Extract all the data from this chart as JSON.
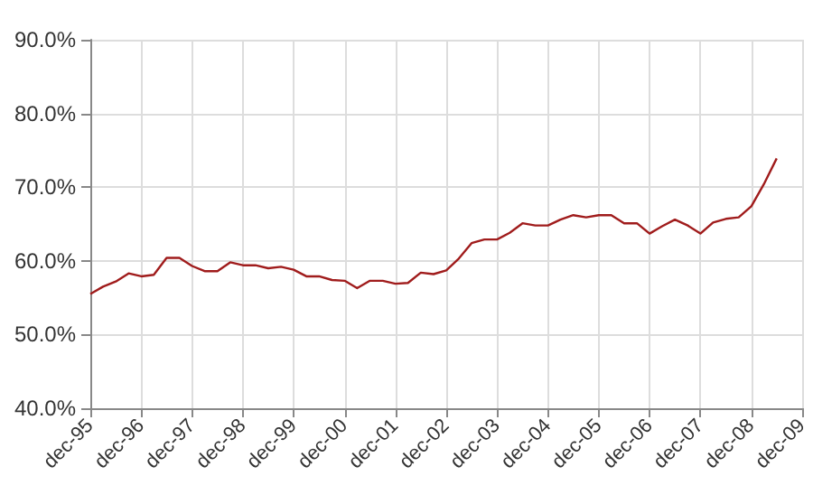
{
  "chart_data": {
    "type": "line",
    "x": [
      "1995-12",
      "1996-03",
      "1996-06",
      "1996-09",
      "1996-12",
      "1997-03",
      "1997-06",
      "1997-09",
      "1997-12",
      "1998-03",
      "1998-06",
      "1998-09",
      "1998-12",
      "1999-03",
      "1999-06",
      "1999-09",
      "1999-12",
      "2000-03",
      "2000-06",
      "2000-09",
      "2000-12",
      "2001-03",
      "2001-06",
      "2001-09",
      "2001-12",
      "2002-03",
      "2002-06",
      "2002-09",
      "2002-12",
      "2003-03",
      "2003-06",
      "2003-09",
      "2003-12",
      "2004-03",
      "2004-06",
      "2004-09",
      "2004-12",
      "2005-03",
      "2005-06",
      "2005-09",
      "2005-12",
      "2006-03",
      "2006-06",
      "2006-09",
      "2006-12",
      "2007-03",
      "2007-06",
      "2007-09",
      "2007-12",
      "2008-03",
      "2008-06",
      "2008-09",
      "2008-12",
      "2009-03",
      "2009-06"
    ],
    "series": [
      {
        "color": "#a01c1c",
        "values": [
          55.5,
          56.5,
          57.2,
          58.3,
          57.9,
          58.1,
          60.4,
          60.4,
          59.3,
          58.6,
          58.6,
          59.8,
          59.4,
          59.4,
          59.0,
          59.2,
          58.8,
          57.9,
          57.9,
          57.4,
          57.3,
          56.3,
          57.3,
          57.3,
          56.9,
          57.0,
          58.4,
          58.2,
          58.7,
          60.3,
          62.4,
          62.9,
          62.9,
          63.8,
          65.1,
          64.8,
          64.8,
          65.6,
          66.2,
          65.9,
          66.2,
          66.2,
          65.1,
          65.1,
          63.7,
          64.7,
          65.6,
          64.8,
          63.7,
          65.2,
          65.7,
          65.9,
          67.4,
          70.4,
          73.9
        ]
      }
    ],
    "xlim": [
      "1995-12",
      "2009-12"
    ],
    "xticks": [
      {
        "value": "1995-12",
        "label": "dec-95"
      },
      {
        "value": "1996-12",
        "label": "dec-96"
      },
      {
        "value": "1997-12",
        "label": "dec-97"
      },
      {
        "value": "1998-12",
        "label": "dec-98"
      },
      {
        "value": "1999-12",
        "label": "dec-99"
      },
      {
        "value": "2000-12",
        "label": "dec-00"
      },
      {
        "value": "2001-12",
        "label": "dec-01"
      },
      {
        "value": "2002-12",
        "label": "dec-02"
      },
      {
        "value": "2003-12",
        "label": "dec-03"
      },
      {
        "value": "2004-12",
        "label": "dec-04"
      },
      {
        "value": "2005-12",
        "label": "dec-05"
      },
      {
        "value": "2006-12",
        "label": "dec-06"
      },
      {
        "value": "2007-12",
        "label": "dec-07"
      },
      {
        "value": "2008-12",
        "label": "dec-08"
      },
      {
        "value": "2009-12",
        "label": "dec-09"
      }
    ],
    "ylim": [
      40,
      90
    ],
    "yticks": [
      {
        "value": 40,
        "label": "40.0%"
      },
      {
        "value": 50,
        "label": "50.0%"
      },
      {
        "value": 60,
        "label": "60.0%"
      },
      {
        "value": 70,
        "label": "70.0%"
      },
      {
        "value": 80,
        "label": "80.0%"
      },
      {
        "value": 90,
        "label": "90.0%"
      }
    ],
    "grid": true,
    "marker": "none",
    "line_style": "solid"
  }
}
